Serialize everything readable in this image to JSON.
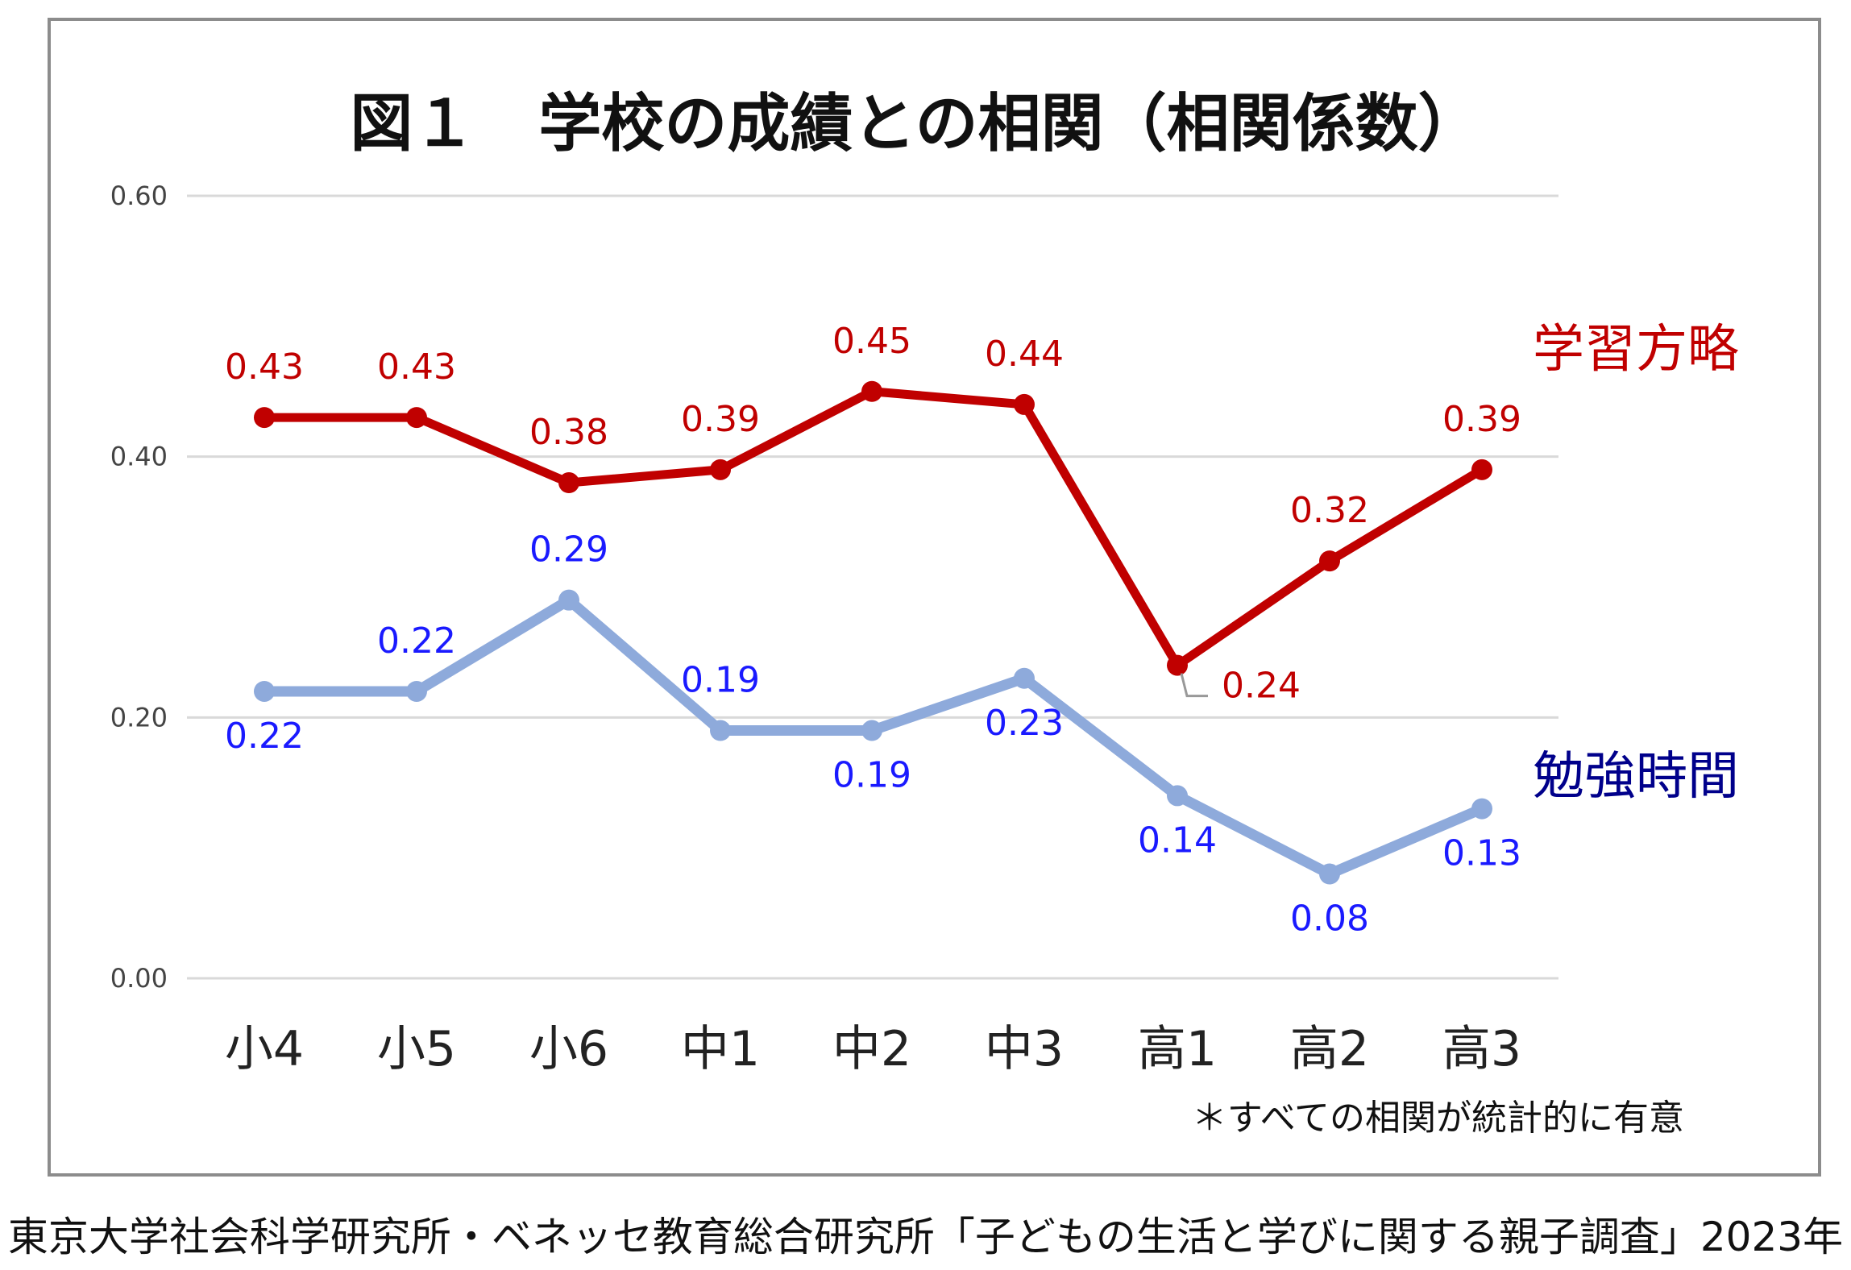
{
  "chart_data": {
    "type": "line",
    "title": "図１　学校の成績との相関（相関係数）",
    "categories": [
      "小4",
      "小5",
      "小6",
      "中1",
      "中2",
      "中3",
      "高1",
      "高2",
      "高3"
    ],
    "ylim": [
      0,
      0.6
    ],
    "yticks": [
      "0.00",
      "0.20",
      "0.40",
      "0.60"
    ],
    "grid": true,
    "series": [
      {
        "name": "学習方略",
        "color": "#c00000",
        "values": [
          0.43,
          0.43,
          0.38,
          0.39,
          0.45,
          0.44,
          0.24,
          0.32,
          0.39
        ],
        "labels": [
          "0.43",
          "0.43",
          "0.38",
          "0.39",
          "0.45",
          "0.44",
          "0.24",
          "0.32",
          "0.39"
        ]
      },
      {
        "name": "勉強時間",
        "color": "#8eaadb",
        "label_color": "#1a1aff",
        "name_color": "#00008b",
        "values": [
          0.22,
          0.22,
          0.29,
          0.19,
          0.19,
          0.23,
          0.14,
          0.08,
          0.13
        ],
        "labels": [
          "0.22",
          "0.22",
          "0.29",
          "0.19",
          "0.19",
          "0.23",
          "0.14",
          "0.08",
          "0.13"
        ]
      }
    ],
    "annotation": "＊すべての相関が統計的に有意"
  },
  "source": "東京大学社会科学研究所・ベネッセ教育総合研究所「子どもの生活と学びに関する親子調査」2023年"
}
